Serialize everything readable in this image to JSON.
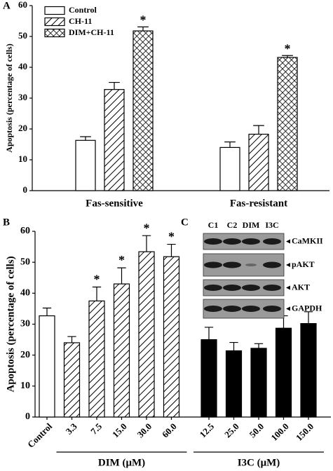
{
  "chart_data": [
    {
      "type": "bar",
      "panel_label": "A",
      "ylabel": "Apoptosis (percentage of cells)",
      "categories": [
        "Fas-sensitive",
        "Fas-resistant"
      ],
      "series": [
        {
          "name": "Control",
          "fill": "white",
          "values": [
            16.3,
            14.0
          ],
          "errors": [
            1.2,
            1.8
          ]
        },
        {
          "name": "CH-11",
          "fill": "hatch",
          "values": [
            32.8,
            18.3
          ],
          "errors": [
            2.3,
            2.8
          ]
        },
        {
          "name": "DIM+CH-11",
          "fill": "crosshatch",
          "values": [
            51.8,
            43.2
          ],
          "errors": [
            1.3,
            0.6
          ]
        }
      ],
      "annotations": [
        {
          "text": "*",
          "category": "Fas-sensitive",
          "series": "DIM+CH-11"
        },
        {
          "text": "*",
          "category": "Fas-resistant",
          "series": "DIM+CH-11"
        }
      ],
      "ylim": [
        0,
        60
      ],
      "yticks": [
        0,
        10,
        20,
        30,
        40,
        50,
        60
      ],
      "legend": "upper-left"
    },
    {
      "type": "bar",
      "panel_label": "B",
      "ylabel": "Apoptosis (percentage of cells)",
      "categories": [
        "Control",
        "3.3",
        "7.5",
        "15.0",
        "30.0",
        "60.0",
        "12.5",
        "25.0",
        "50.0",
        "100.0",
        "150.0"
      ],
      "values": [
        32.7,
        24.0,
        37.5,
        43.0,
        53.4,
        51.8,
        25.0,
        21.4,
        22.2,
        28.7,
        30.2
      ],
      "errors": [
        2.5,
        2.0,
        4.5,
        5.2,
        5.2,
        4.0,
        4.0,
        2.7,
        1.5,
        4.0,
        3.8
      ],
      "fills": [
        "white",
        "hatch",
        "hatch",
        "hatch",
        "hatch",
        "hatch",
        "black",
        "black",
        "black",
        "black",
        "black"
      ],
      "groups": [
        {
          "label": "DIM (μM)",
          "categories": [
            "3.3",
            "7.5",
            "15.0",
            "30.0",
            "60.0"
          ]
        },
        {
          "label": "I3C (μM)",
          "categories": [
            "12.5",
            "25.0",
            "50.0",
            "100.0",
            "150.0"
          ]
        }
      ],
      "annotations": [
        {
          "text": "*",
          "category": "7.5"
        },
        {
          "text": "*",
          "category": "15.0"
        },
        {
          "text": "*",
          "category": "30.0"
        },
        {
          "text": "*",
          "category": "60.0"
        }
      ],
      "ylim": [
        0,
        60
      ],
      "yticks": [
        0,
        10,
        20,
        30,
        40,
        50,
        60
      ]
    }
  ],
  "blot": {
    "panel_label": "C",
    "lanes": [
      "C1",
      "C2",
      "DIM",
      "I3C"
    ],
    "proteins": [
      "CaMKII",
      "pAKT",
      "AKT",
      "GAPDH"
    ]
  }
}
